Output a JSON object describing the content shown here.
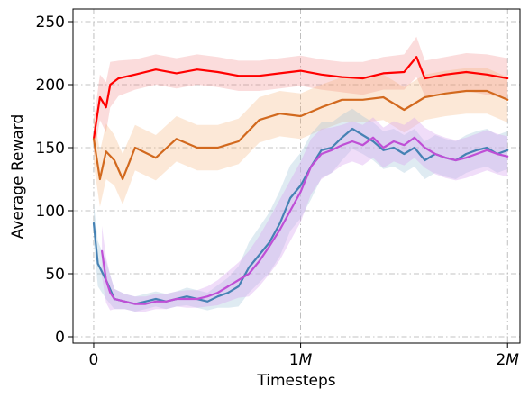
{
  "chart_data": {
    "type": "line",
    "title": "",
    "xlabel": "Timesteps",
    "ylabel": "Average Reward",
    "xlim": [
      -100000,
      2060000
    ],
    "ylim": [
      -5,
      260
    ],
    "xticks": [
      0,
      1000000,
      2000000
    ],
    "xtick_labels": [
      {
        "base": "0",
        "italic": ""
      },
      {
        "base": "1",
        "italic": "M"
      },
      {
        "base": "2",
        "italic": "M"
      }
    ],
    "yticks": [
      0,
      50,
      100,
      150,
      200,
      250
    ],
    "ytick_labels": [
      "0",
      "50",
      "100",
      "150",
      "200",
      "250"
    ],
    "grid": true,
    "legend": "none",
    "series": [
      {
        "color": "#ff0000",
        "band_color": "#f08080",
        "band_alpha": 0.28,
        "x": [
          0,
          30000,
          60000,
          80000,
          120000,
          200000,
          300000,
          400000,
          500000,
          600000,
          700000,
          800000,
          900000,
          1000000,
          1100000,
          1200000,
          1300000,
          1400000,
          1500000,
          1560000,
          1600000,
          1700000,
          1800000,
          1900000,
          2000000
        ],
        "y": [
          157,
          190,
          182,
          200,
          205,
          208,
          212,
          209,
          212,
          210,
          207,
          207,
          209,
          211,
          208,
          206,
          205,
          209,
          210,
          222,
          205,
          208,
          210,
          208,
          205
        ],
        "spread": [
          14,
          18,
          20,
          18,
          14,
          12,
          12,
          12,
          12,
          12,
          12,
          12,
          12,
          12,
          12,
          12,
          13,
          13,
          14,
          16,
          14,
          14,
          15,
          16,
          16
        ]
      },
      {
        "color": "#d2691e",
        "band_color": "#f4a460",
        "band_alpha": 0.25,
        "x": [
          0,
          30000,
          60000,
          100000,
          140000,
          200000,
          300000,
          400000,
          500000,
          600000,
          700000,
          800000,
          900000,
          1000000,
          1100000,
          1200000,
          1300000,
          1400000,
          1500000,
          1600000,
          1700000,
          1800000,
          1900000,
          2000000
        ],
        "y": [
          157,
          125,
          147,
          140,
          125,
          150,
          142,
          157,
          150,
          150,
          155,
          172,
          177,
          175,
          182,
          188,
          188,
          190,
          180,
          190,
          193,
          195,
          195,
          188
        ],
        "spread": [
          20,
          22,
          22,
          20,
          20,
          18,
          18,
          18,
          18,
          18,
          18,
          18,
          18,
          18,
          18,
          18,
          18,
          18,
          18,
          18,
          18,
          18,
          18,
          18
        ]
      },
      {
        "color": "#4682b4",
        "band_color": "#9ec2d8",
        "band_alpha": 0.33,
        "x": [
          0,
          20000,
          60000,
          100000,
          150000,
          200000,
          250000,
          300000,
          350000,
          400000,
          450000,
          500000,
          550000,
          600000,
          650000,
          700000,
          750000,
          800000,
          850000,
          900000,
          950000,
          1000000,
          1050000,
          1100000,
          1150000,
          1200000,
          1250000,
          1300000,
          1350000,
          1400000,
          1450000,
          1500000,
          1550000,
          1600000,
          1650000,
          1700000,
          1750000,
          1800000,
          1850000,
          1900000,
          1950000,
          2000000
        ],
        "y": [
          90,
          58,
          45,
          30,
          28,
          26,
          28,
          30,
          28,
          30,
          32,
          30,
          28,
          32,
          35,
          40,
          55,
          65,
          75,
          90,
          110,
          120,
          135,
          148,
          150,
          158,
          165,
          160,
          155,
          148,
          150,
          145,
          150,
          140,
          145,
          142,
          140,
          145,
          148,
          150,
          145,
          148
        ],
        "spread": [
          16,
          18,
          15,
          8,
          6,
          6,
          6,
          6,
          6,
          6,
          7,
          7,
          7,
          9,
          12,
          16,
          20,
          22,
          24,
          26,
          26,
          26,
          26,
          22,
          20,
          18,
          16,
          15,
          15,
          15,
          15,
          15,
          15,
          15,
          15,
          15,
          15,
          15,
          15,
          15,
          15,
          15
        ]
      },
      {
        "color": "#bf4fd6",
        "band_color": "#d8a6ef",
        "band_alpha": 0.38,
        "x": [
          40000,
          60000,
          80000,
          100000,
          150000,
          200000,
          250000,
          300000,
          350000,
          400000,
          450000,
          500000,
          550000,
          600000,
          650000,
          700000,
          750000,
          800000,
          850000,
          900000,
          950000,
          1000000,
          1050000,
          1100000,
          1150000,
          1200000,
          1250000,
          1300000,
          1350000,
          1400000,
          1450000,
          1500000,
          1550000,
          1600000,
          1650000,
          1700000,
          1750000,
          1800000,
          1850000,
          1900000,
          1950000,
          2000000
        ],
        "y": [
          68,
          45,
          35,
          30,
          28,
          26,
          26,
          28,
          28,
          30,
          30,
          30,
          32,
          35,
          40,
          45,
          50,
          60,
          72,
          85,
          100,
          115,
          135,
          145,
          148,
          152,
          155,
          152,
          158,
          150,
          155,
          152,
          158,
          150,
          145,
          142,
          140,
          142,
          145,
          148,
          145,
          143
        ],
        "spread": [
          20,
          18,
          14,
          8,
          6,
          6,
          6,
          6,
          6,
          6,
          7,
          7,
          8,
          10,
          12,
          14,
          18,
          20,
          22,
          24,
          24,
          24,
          22,
          20,
          18,
          16,
          16,
          16,
          16,
          16,
          16,
          16,
          16,
          16,
          16,
          16,
          16,
          16,
          16,
          16,
          16,
          16
        ]
      }
    ]
  }
}
